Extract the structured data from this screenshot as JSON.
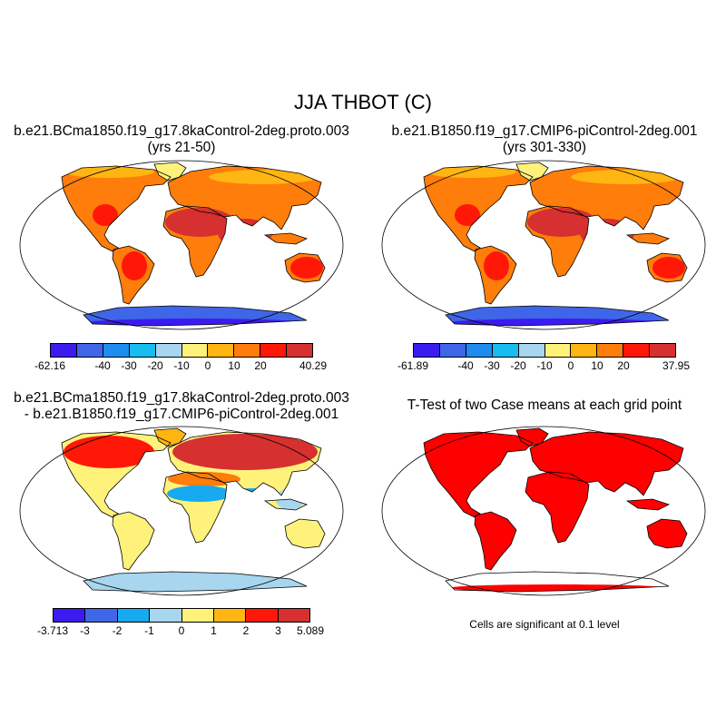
{
  "main_title": "JJA THBOT (C)",
  "panels": [
    {
      "title_line1": "b.e21.BCma1850.f19_g17.8kaControl-2deg.proto.003",
      "title_line2": "(yrs 21-50)",
      "colorbar": {
        "colors": [
          "#3a1cf0",
          "#3f66e8",
          "#1f8cf0",
          "#18bdf0",
          "#a7d6ee",
          "#fff27a",
          "#ffb512",
          "#ff7d0a",
          "#ff1808",
          "#d63030"
        ],
        "labels": [
          "-62.16",
          "-40",
          "-30",
          "-20",
          "-10",
          "0",
          "10",
          "20",
          "40.29"
        ]
      }
    },
    {
      "title_line1": "b.e21.B1850.f19_g17.CMIP6-piControl-2deg.001",
      "title_line2": "(yrs 301-330)",
      "colorbar": {
        "colors": [
          "#3a1cf0",
          "#3f66e8",
          "#1f8cf0",
          "#18bdf0",
          "#a7d6ee",
          "#fff27a",
          "#ffb512",
          "#ff7d0a",
          "#ff1808",
          "#d63030"
        ],
        "labels": [
          "-61.89",
          "-40",
          "-30",
          "-20",
          "-10",
          "0",
          "10",
          "20",
          "37.95"
        ]
      }
    },
    {
      "title_line1": "b.e21.BCma1850.f19_g17.8kaControl-2deg.proto.003",
      "title_line2": "- b.e21.B1850.f19_g17.CMIP6-piControl-2deg.001",
      "colorbar": {
        "colors": [
          "#3a1cf0",
          "#3f66e8",
          "#18aaf0",
          "#a7d6ee",
          "#fff27a",
          "#ffb512",
          "#ff1808",
          "#d63030"
        ],
        "labels": [
          "-3.713",
          "-3",
          "-2",
          "-1",
          "0",
          "1",
          "2",
          "3",
          "5.089"
        ]
      }
    },
    {
      "title_line1": "T-Test of two Case means at each grid point",
      "note": "Cells are significant at 0.1 level"
    }
  ]
}
